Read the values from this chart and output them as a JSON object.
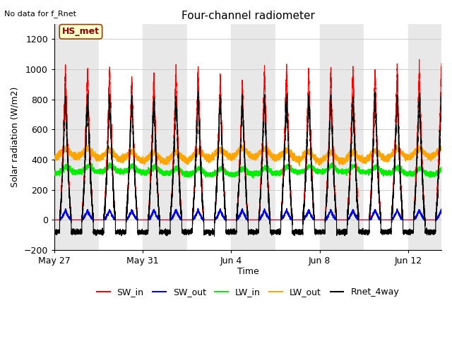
{
  "title": "Four-channel radiometer",
  "top_left_text": "No data for f_Rnet",
  "station_label": "HS_met",
  "ylabel": "Solar radiation (W/m2)",
  "xlabel": "Time",
  "ylim": [
    -200,
    1300
  ],
  "yticks": [
    -200,
    0,
    200,
    400,
    600,
    800,
    1000,
    1200
  ],
  "background_color": "#ffffff",
  "plot_bg_color": "#ffffff",
  "grid_color": "#cccccc",
  "colors": {
    "SW_in": "#ff0000",
    "SW_out": "#0000ff",
    "LW_in": "#00ee00",
    "LW_out": "#ffa500",
    "Rnet_4way": "#000000"
  },
  "legend_labels": [
    "SW_in",
    "SW_out",
    "LW_in",
    "LW_out",
    "Rnet_4way"
  ],
  "n_days": 18,
  "xtick_labels": [
    "May 27",
    "May 31",
    "Jun 4",
    "Jun 8",
    "Jun 12"
  ],
  "xtick_positions": [
    0,
    4,
    8,
    12,
    16
  ],
  "shade_bands": [
    [
      0,
      2,
      "#e8e8e8"
    ],
    [
      2,
      4,
      "#ffffff"
    ],
    [
      4,
      6,
      "#e8e8e8"
    ],
    [
      6,
      8,
      "#ffffff"
    ],
    [
      8,
      10,
      "#e8e8e8"
    ],
    [
      10,
      12,
      "#ffffff"
    ],
    [
      12,
      14,
      "#e8e8e8"
    ],
    [
      14,
      16,
      "#ffffff"
    ],
    [
      16,
      18,
      "#e8e8e8"
    ]
  ]
}
